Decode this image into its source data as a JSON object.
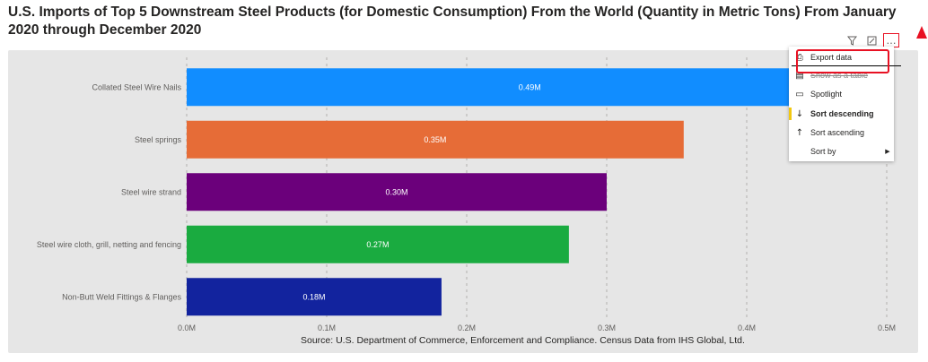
{
  "title": "U.S. Imports of Top 5 Downstream Steel Products (for Domestic Consumption) From the World (Quantity in Metric Tons) From January 2020 through December 2020",
  "source": "Source: U.S. Department of Commerce, Enforcement and Compliance. Census Data from IHS Global, Ltd.",
  "header_icons": {
    "filter": "filter-icon",
    "focus": "focus-mode-icon",
    "more": "…"
  },
  "menu": {
    "items": [
      {
        "label": "Export data",
        "icon": "⎙"
      },
      {
        "label": "Show as a table",
        "icon": "▤"
      },
      {
        "label": "Spotlight",
        "icon": "▭"
      },
      {
        "label": "Sort descending",
        "icon": "↓"
      },
      {
        "label": "Sort ascending",
        "icon": "↑"
      },
      {
        "label": "Sort by",
        "icon": ""
      }
    ]
  },
  "colors": {
    "background": "#e6e6e6",
    "highlight": "#e81123"
  },
  "chart_data": {
    "type": "bar",
    "orientation": "horizontal",
    "categories": [
      "Collated Steel Wire Nails",
      "Steel springs",
      "Steel wire strand",
      "Steel wire cloth, grill, netting and fencing",
      "Non-Butt Weld Fittings & Flanges"
    ],
    "values": [
      490000,
      355000,
      300000,
      273000,
      182000
    ],
    "data_labels": [
      "0.49M",
      "0.35M",
      "0.30M",
      "0.27M",
      "0.18M"
    ],
    "colors": [
      "#118dff",
      "#e66c37",
      "#6b007b",
      "#1aab40",
      "#12239e"
    ],
    "xlim": [
      0,
      500000
    ],
    "xticks": [
      "0.0M",
      "0.1M",
      "0.2M",
      "0.3M",
      "0.4M",
      "0.5M"
    ],
    "grid": true
  }
}
